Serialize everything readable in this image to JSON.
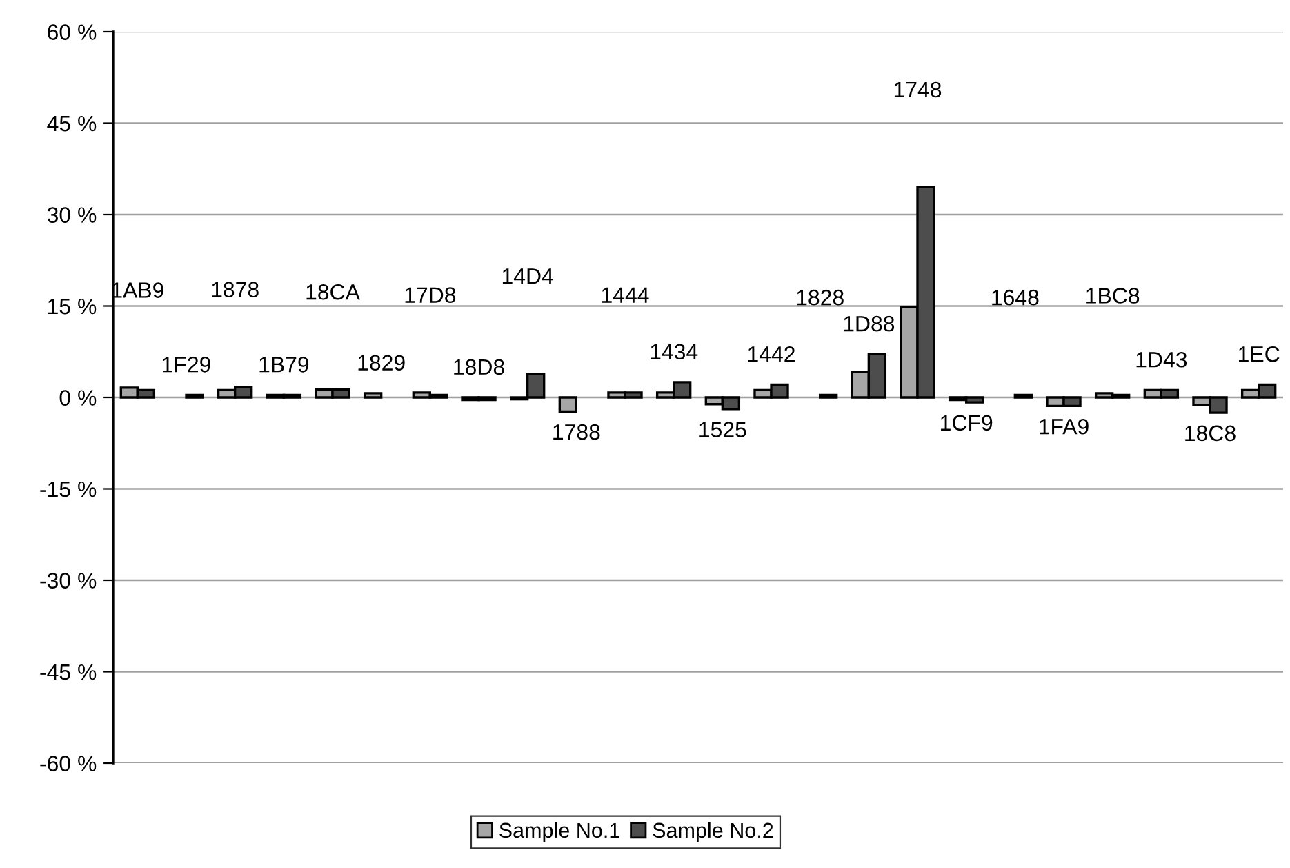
{
  "chart_data": {
    "type": "bar",
    "categories": [
      "1AB9",
      "1F29",
      "1878",
      "1B79",
      "18CA",
      "1829",
      "17D8",
      "18D8",
      "14D4",
      "1788",
      "1444",
      "1434",
      "1525",
      "1442",
      "1828",
      "1D88",
      "1748",
      "1CF9",
      "1648",
      "1FA9",
      "1BC8",
      "1D43",
      "18C8",
      "1EC"
    ],
    "series": [
      {
        "name": "Sample No.1",
        "color": "#a6a6a6",
        "values": [
          1.6,
          null,
          1.2,
          0.4,
          1.3,
          0.7,
          0.8,
          -0.4,
          -0.3,
          -2.3,
          0.8,
          0.8,
          -1.1,
          1.2,
          null,
          4.2,
          14.8,
          -0.4,
          null,
          -1.4,
          0.7,
          1.2,
          -1.2,
          1.2
        ]
      },
      {
        "name": "Sample No.2",
        "color": "#4d4d4d",
        "values": [
          1.2,
          0.4,
          1.7,
          0.4,
          1.3,
          null,
          0.4,
          -0.4,
          3.9,
          null,
          0.8,
          2.5,
          -1.9,
          2.1,
          0.4,
          7.1,
          34.5,
          -0.8,
          0.4,
          -1.4,
          0.4,
          1.2,
          -2.5,
          2.1
        ]
      }
    ],
    "ylim": [
      -60,
      60
    ],
    "yticks": [
      {
        "value": -60,
        "label": "-60 %"
      },
      {
        "value": -45,
        "label": "-45 %"
      },
      {
        "value": -30,
        "label": "-30 %"
      },
      {
        "value": -15,
        "label": "-15 %"
      },
      {
        "value": 0,
        "label": "0 %"
      },
      {
        "value": 15,
        "label": "15 %"
      },
      {
        "value": 30,
        "label": "30 %"
      },
      {
        "value": 45,
        "label": "45 %"
      },
      {
        "value": 60,
        "label": "60 %"
      }
    ],
    "grid": "y",
    "legend": "bottom",
    "tick_labels": "y"
  }
}
